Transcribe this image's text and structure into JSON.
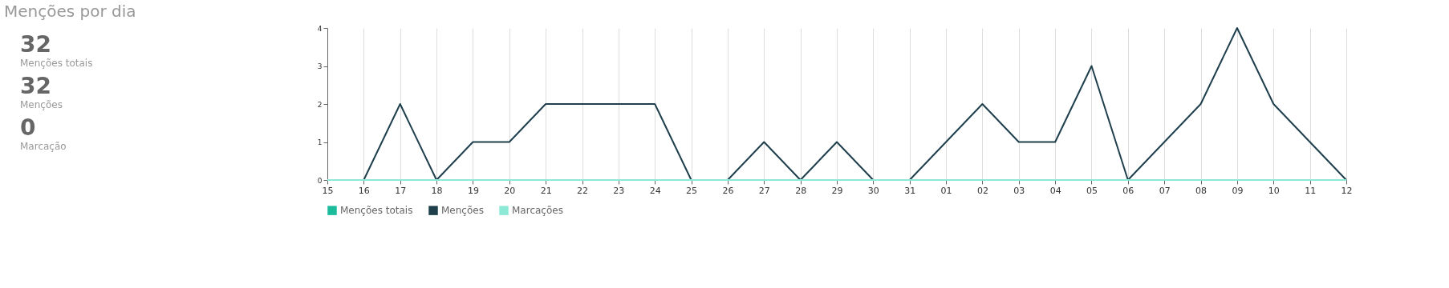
{
  "chart_data": [
    {
      "type": "other",
      "title": "Menções por dia",
      "annotations": [
        "32",
        "Menções totais",
        "32",
        "Menções",
        "0",
        "Marcação"
      ]
    },
    {
      "type": "line",
      "categories": [
        "15",
        "16",
        "17",
        "18",
        "19",
        "20",
        "21",
        "22",
        "23",
        "24",
        "25",
        "26",
        "27",
        "28",
        "29",
        "30",
        "31",
        "01",
        "02",
        "03",
        "04",
        "05",
        "06",
        "07",
        "08",
        "09",
        "10",
        "11",
        "12"
      ],
      "series": [
        {
          "name": "Menções totais",
          "color": "#1abc9c",
          "values": [
            null,
            null,
            null,
            null,
            null,
            null,
            null,
            null,
            null,
            null,
            null,
            null,
            null,
            null,
            null,
            null,
            null,
            null,
            null,
            null,
            null,
            null,
            null,
            null,
            null,
            null,
            null,
            null,
            null
          ]
        },
        {
          "name": "Menções",
          "color": "#1f3f4d",
          "values": [
            0,
            0,
            2,
            0,
            1,
            1,
            2,
            2,
            2,
            2,
            0,
            0,
            1,
            0,
            1,
            0,
            0,
            1,
            2,
            1,
            1,
            3,
            0,
            1,
            2,
            4,
            2,
            1,
            0
          ]
        },
        {
          "name": "Marcações",
          "color": "#8de9d6",
          "values": [
            0,
            0,
            0,
            0,
            0,
            0,
            0,
            0,
            0,
            0,
            0,
            0,
            0,
            0,
            0,
            0,
            0,
            0,
            0,
            0,
            0,
            0,
            0,
            0,
            0,
            0,
            0,
            0,
            0
          ]
        }
      ],
      "ylim": [
        0,
        4
      ],
      "yticks": [
        0,
        1,
        2,
        3,
        4
      ],
      "grid": "x",
      "legend": "bottom left",
      "marker": "none",
      "line_style": "solid"
    }
  ]
}
